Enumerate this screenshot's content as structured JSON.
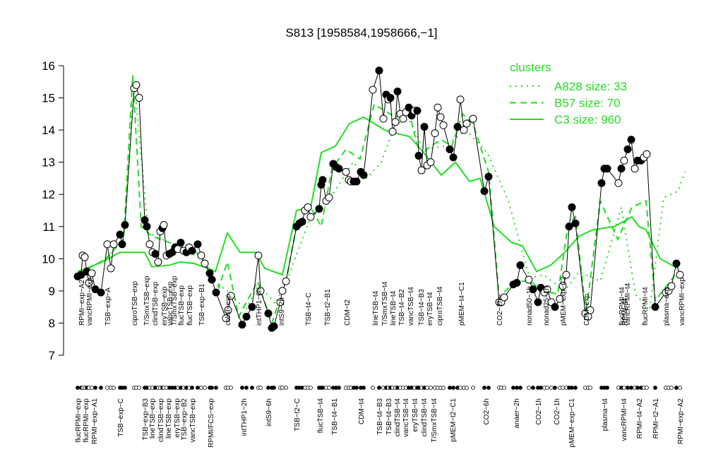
{
  "chart_data": {
    "type": "line",
    "title": "S813 [1958584,1958666,−1]",
    "ylim": [
      7,
      16
    ],
    "yticks": [
      7,
      8,
      9,
      10,
      11,
      12,
      13,
      14,
      15,
      16
    ],
    "xlim": [
      0,
      870
    ],
    "x": [
      10,
      15,
      17,
      20,
      23,
      26,
      30,
      35,
      43,
      52,
      57,
      61,
      70,
      73,
      77,
      90,
      93,
      97,
      105,
      108,
      112,
      116,
      120,
      124,
      127,
      130,
      132,
      136,
      140,
      144,
      148,
      152,
      156,
      160,
      164,
      168,
      172,
      180,
      185,
      190,
      197,
      200,
      206,
      220,
      223,
      227,
      243,
      249,
      257,
      266,
      269,
      280,
      285,
      288,
      297,
      300,
      305,
      320,
      324,
      328,
      332,
      336,
      340,
      352,
      355,
      357,
      362,
      366,
      372,
      376,
      380,
      390,
      394,
      397,
      401,
      405,
      411,
      415,
      428,
      437,
      443,
      447,
      450,
      453,
      456,
      460,
      463,
      467,
      471,
      475,
      479,
      483,
      487,
      491,
      493,
      497,
      501,
      505,
      510,
      516,
      520,
      524,
      528,
      537,
      542,
      548,
      552,
      557,
      561,
      570,
      586,
      592,
      607,
      610,
      614,
      627,
      632,
      637,
      649,
      655,
      662,
      666,
      671,
      675,
      681,
      686,
      693,
      697,
      702,
      706,
      710,
      715,
      729,
      733,
      736,
      752,
      756,
      760,
      776,
      780,
      784,
      789,
      794,
      799,
      803,
      808,
      812,
      816,
      828,
      843,
      847,
      851,
      858,
      863
    ],
    "values": [
      9.45,
      9.5,
      10.1,
      10.05,
      9.6,
      9.25,
      9.55,
      9.05,
      8.95,
      10.45,
      9.7,
      10.45,
      10.75,
      10.45,
      11.05,
      15.3,
      15.4,
      15.0,
      11.2,
      11.0,
      10.45,
      10.2,
      10.15,
      9.9,
      10.85,
      10.95,
      11.05,
      10.1,
      10.15,
      10.2,
      10.35,
      10.3,
      10.5,
      10.25,
      10.2,
      10.35,
      10.25,
      10.45,
      10.1,
      9.85,
      9.55,
      9.35,
      8.95,
      8.15,
      8.4,
      8.85,
      7.95,
      8.2,
      8.5,
      10.1,
      9.0,
      8.3,
      7.85,
      7.9,
      8.65,
      9.0,
      9.3,
      11.0,
      11.1,
      11.15,
      11.5,
      11.6,
      11.3,
      11.55,
      12.3,
      12.45,
      11.8,
      11.9,
      12.95,
      12.85,
      12.8,
      12.7,
      12.45,
      12.4,
      12.4,
      12.4,
      12.7,
      12.6,
      15.25,
      15.85,
      14.35,
      15.1,
      14.95,
      15.0,
      13.95,
      14.25,
      15.2,
      14.5,
      14.35,
      14.55,
      14.7,
      14.45,
      14.6,
      14.6,
      13.2,
      12.75,
      14.1,
      12.9,
      13.0,
      13.9,
      14.7,
      14.4,
      14.15,
      13.4,
      13.15,
      14.1,
      14.95,
      14.0,
      14.2,
      14.35,
      12.1,
      12.55,
      8.65,
      8.65,
      8.8,
      9.2,
      9.25,
      9.8,
      9.35,
      9.05,
      8.65,
      9.1,
      8.95,
      9.05,
      8.65,
      8.5,
      8.75,
      9.15,
      9.5,
      11.0,
      11.6,
      11.1,
      8.3,
      8.2,
      8.4,
      12.35,
      12.8,
      12.8,
      12.35,
      12.8,
      13.05,
      13.4,
      13.7,
      12.8,
      13.05,
      13.05,
      13.15,
      13.25,
      8.5,
      8.95,
      9.0,
      9.15,
      9.85,
      9.5
    ],
    "filled": [
      1,
      1,
      0,
      0,
      1,
      0,
      0,
      1,
      1,
      0,
      0,
      0,
      1,
      1,
      1,
      0,
      0,
      0,
      1,
      1,
      0,
      0,
      1,
      0,
      0,
      1,
      0,
      0,
      1,
      1,
      1,
      0,
      1,
      0,
      1,
      0,
      1,
      1,
      0,
      0,
      1,
      1,
      1,
      0,
      0,
      0,
      1,
      1,
      1,
      0,
      0,
      1,
      1,
      1,
      0,
      0,
      0,
      1,
      1,
      1,
      0,
      0,
      0,
      1,
      1,
      1,
      0,
      0,
      1,
      1,
      1,
      0,
      0,
      0,
      1,
      1,
      1,
      1,
      0,
      1,
      0,
      1,
      0,
      1,
      0,
      0,
      1,
      0,
      0,
      0,
      1,
      1,
      0,
      1,
      1,
      0,
      1,
      0,
      0,
      0,
      0,
      0,
      0,
      1,
      1,
      1,
      0,
      0,
      0,
      0,
      1,
      1,
      0,
      0,
      0,
      1,
      1,
      1,
      0,
      1,
      1,
      1,
      0,
      0,
      0,
      1,
      0,
      0,
      0,
      1,
      1,
      1,
      0,
      0,
      0,
      1,
      1,
      1,
      0,
      1,
      0,
      1,
      1,
      0,
      1,
      1,
      0,
      0,
      1,
      0,
      0,
      0,
      1,
      0
    ],
    "legend_title": "clusters",
    "legend_color": "#22dd22",
    "lines": [
      {
        "name": "A828 size: 33",
        "dash": "dotted",
        "x": [
          10,
          50,
          75,
          90,
          110,
          150,
          185,
          210,
          227,
          248,
          266,
          290,
          306,
          340,
          360,
          377,
          400,
          420,
          440,
          460,
          480,
          500,
          530,
          560,
          590,
          620,
          650,
          670,
          700,
          720,
          750,
          780,
          800,
          820,
          840,
          860,
          870
        ],
        "values": [
          9.5,
          10.0,
          10.6,
          15.5,
          10.8,
          10.4,
          10.0,
          9.2,
          8.9,
          8.4,
          9.2,
          8.6,
          9.3,
          11.3,
          11.6,
          12.2,
          13.0,
          12.5,
          13.0,
          14.2,
          14.3,
          13.4,
          13.5,
          14.0,
          13.3,
          11.8,
          9.4,
          9.5,
          9.0,
          9.6,
          9.3,
          11.6,
          8.9,
          8.4,
          11.9,
          12.1,
          12.7
        ]
      },
      {
        "name": "B57 size: 70",
        "dash": "dashed",
        "x": [
          10,
          50,
          75,
          88,
          100,
          115,
          140,
          170,
          190,
          210,
          222,
          238,
          265,
          285,
          305,
          320,
          340,
          355,
          370,
          390,
          410,
          430,
          445,
          460,
          480,
          495,
          510,
          525,
          540,
          555,
          570,
          592,
          607,
          630,
          650,
          670,
          690,
          705,
          715,
          730,
          750,
          775,
          795,
          815,
          828,
          860
        ],
        "values": [
          9.5,
          10.0,
          10.6,
          15.7,
          11.0,
          10.7,
          10.5,
          10.4,
          9.9,
          9.1,
          9.9,
          8.2,
          9.3,
          8.0,
          9.3,
          11.0,
          11.6,
          11.0,
          12.8,
          13.4,
          13.1,
          14.8,
          14.6,
          14.4,
          14.5,
          13.2,
          13.5,
          13.7,
          13.5,
          14.5,
          14.2,
          12.7,
          8.8,
          9.3,
          9.3,
          9.0,
          8.9,
          11.1,
          11.3,
          8.3,
          11.8,
          10.6,
          11.6,
          11.8,
          8.7,
          9.6
        ]
      },
      {
        "name": "C3 size: 960",
        "dash": "solid",
        "x": [
          10,
          45,
          70,
          105,
          115,
          140,
          155,
          175,
          195,
          205,
          222,
          240,
          262,
          275,
          300,
          320,
          340,
          355,
          375,
          395,
          415,
          430,
          445,
          460,
          480,
          500,
          525,
          545,
          565,
          580,
          600,
          625,
          640,
          660,
          680,
          700,
          720,
          740,
          770,
          795,
          805,
          815,
          835,
          860
        ],
        "values": [
          9.6,
          9.9,
          10.2,
          10.2,
          9.75,
          9.8,
          9.9,
          9.85,
          9.7,
          9.6,
          10.8,
          10.2,
          10.2,
          9.7,
          9.5,
          11.5,
          11.6,
          13.3,
          13.5,
          14.2,
          14.4,
          14.2,
          14.0,
          13.9,
          13.8,
          13.3,
          12.6,
          13.0,
          12.4,
          12.5,
          11.0,
          10.5,
          10.4,
          9.6,
          9.8,
          10.2,
          10.7,
          10.9,
          11.0,
          11.3,
          11.0,
          10.9,
          10.0,
          9.7
        ]
      }
    ],
    "top_labels": {
      "x": [
        15,
        26,
        52,
        90,
        107,
        119,
        132,
        140,
        146,
        156,
        168,
        185,
        222,
        266,
        298,
        336,
        363,
        391,
        431,
        444,
        456,
        468,
        481,
        496,
        508,
        522,
        553,
        607,
        649,
        673,
        697,
        730,
        780,
        784,
        788,
        813,
        843,
        865
      ],
      "labels": [
        "RPMI−exp−A2",
        "vancRPMI−exp",
        "TSB−exp−A",
        "ciproTSB−exp",
        "T/SmxTSB−exp",
        "clindTSB−exp",
        "eryTSB−exp",
        "vancTSB−exp",
        "T/SmxTSB−exp",
        "flucTSB−exp",
        "flucTSB−exp",
        "TSB−exp−B1",
        "colist−exp",
        "intTHP1−6h",
        "intS9−2h",
        "TSB−t4−C",
        "TSB−t2−B1",
        "CDM−t2",
        "lineTSB−t4",
        "T/SmxTSB−t4",
        "lineTSB−t4",
        "TSB−t4−B2",
        "vancTSB−t4",
        "TSB−t4−B3",
        "eryTSB−t4",
        "ciproTSB−t4",
        "pMEM−t4−C1",
        "CO2−2h",
        "nonad50−1h",
        "nonad25−1h",
        "pMEM−exp−C2",
        "CDM−exp",
        "flucRPMI−t4",
        "RPMI−t4",
        "vancRPMI−t4",
        "flucRPMI−t4",
        "plasma−exp",
        "vancRPMI−exp"
      ]
    },
    "bottom_labels": {
      "x": [
        10,
        21,
        33,
        70,
        105,
        115,
        127,
        138,
        150,
        160,
        172,
        198,
        245,
        280,
        320,
        353,
        373,
        411,
        437,
        450,
        462,
        474,
        487,
        500,
        514,
        541,
        588,
        631,
        662,
        688,
        709,
        756,
        783,
        805,
        828,
        863
      ],
      "labels": [
        "flucRPMI−exp",
        "flucRPMI−exp",
        "RPMI−exp−A1",
        "TSB−exp−C",
        "TSB−exp−B3",
        "lineTSB−exp",
        "clindTSB−exp",
        "lineTSB−exp",
        "eryTSB−exp",
        "TSB−exp−B2",
        "vancTSB−exp",
        "RPMI/FCS−exp",
        "intTHP1−2h",
        "intS9−6h",
        "TSB−t2−C",
        "flucTSB−t4",
        "TSB−t4−B1",
        "CDM−t4",
        "TSB−t4−B3",
        "TSB−t4−B3",
        "clindTSB−t4",
        "vancTSB−t4",
        "eryTSB−t4",
        "clindTSB−t4",
        "T/SmxTSB−t4",
        "pMEM−t2−C1",
        "CO2−6h",
        "anaer−2h",
        "CO2−1h",
        "CO2−1h",
        "pMEM−exp−C1",
        "plasma−t4",
        "vancRPMI−t4",
        "RPMI−t4−A2",
        "RPMI−t2−A1",
        "RPMI−exp−A2"
      ]
    }
  }
}
